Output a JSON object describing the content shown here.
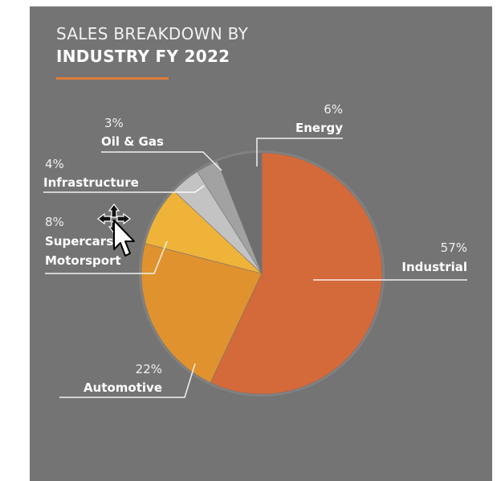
{
  "title": {
    "line1": "SALES BREAKDOWN BY",
    "line2": "INDUSTRY FY 2022"
  },
  "chart_data": {
    "type": "pie",
    "title": "SALES BREAKDOWN BY INDUSTRY FY 2022",
    "slices": [
      {
        "label": "Industrial",
        "pct_label": "57%",
        "value": 57,
        "color": "#d4693a"
      },
      {
        "label": "Automotive",
        "pct_label": "22%",
        "value": 22,
        "color": "#e0922f"
      },
      {
        "label": "Supercars & Motorsport",
        "label_line1": "Supercars &",
        "label_line2": "Motorsport",
        "pct_label": "8%",
        "value": 8,
        "color": "#efb33a"
      },
      {
        "label": "Infrastructure",
        "pct_label": "4%",
        "value": 4,
        "color": "#c3c3c3"
      },
      {
        "label": "Oil & Gas",
        "pct_label": "3%",
        "value": 3,
        "color": "#a2a2a2"
      },
      {
        "label": "Energy",
        "pct_label": "6%",
        "value": 6,
        "color": "#6f6f6f"
      }
    ]
  },
  "colors": {
    "panel_background": "#747474",
    "title_accent": "#e07b39"
  },
  "icons": [
    "move-cursor-icon"
  ]
}
